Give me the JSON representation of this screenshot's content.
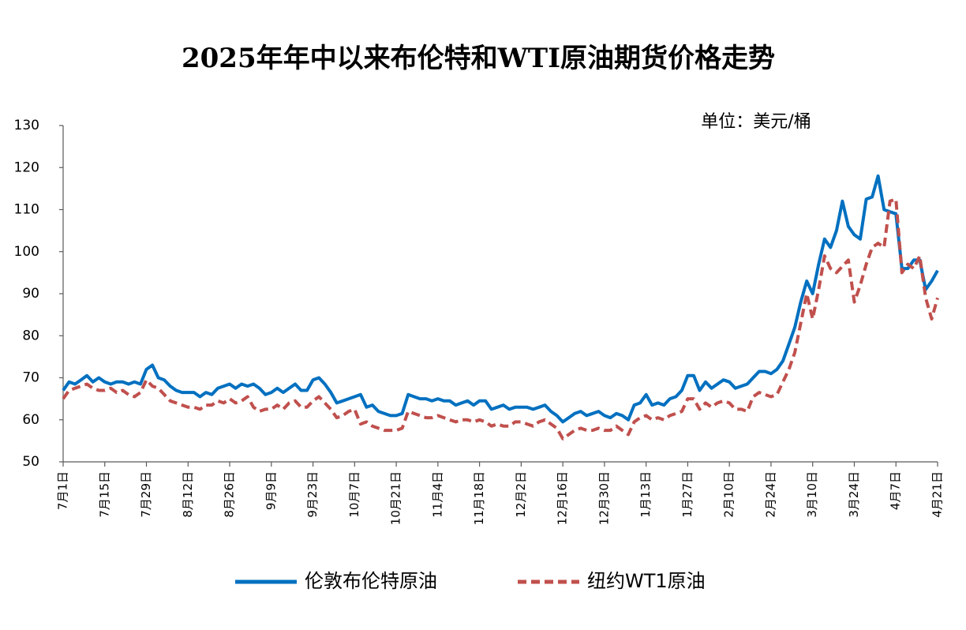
{
  "chart_data": {
    "type": "line",
    "title": "2025年年中以来布伦特和WTI原油期货价格走势",
    "annotation": "单位：美元/桶",
    "categories": [
      "7月1日",
      null,
      null,
      null,
      null,
      null,
      null,
      "7月15日",
      null,
      null,
      null,
      null,
      null,
      null,
      "7月29日",
      null,
      null,
      null,
      null,
      null,
      null,
      "8月12日",
      null,
      null,
      null,
      null,
      null,
      null,
      "8月26日",
      null,
      null,
      null,
      null,
      null,
      null,
      "9月9日",
      null,
      null,
      null,
      null,
      null,
      null,
      "9月23日",
      null,
      null,
      null,
      null,
      null,
      null,
      "10月7日",
      null,
      null,
      null,
      null,
      null,
      null,
      "10月21日",
      null,
      null,
      null,
      null,
      null,
      null,
      "11月4日",
      null,
      null,
      null,
      null,
      null,
      null,
      "11月18日",
      null,
      null,
      null,
      null,
      null,
      null,
      "12月2日",
      null,
      null,
      null,
      null,
      null,
      null,
      "12月16日",
      null,
      null,
      null,
      null,
      null,
      null,
      "12月30日",
      null,
      null,
      null,
      null,
      null,
      null,
      "1月13日",
      null,
      null,
      null,
      null,
      null,
      null,
      "1月27日",
      null,
      null,
      null,
      null,
      null,
      null,
      "2月10日",
      null,
      null,
      null,
      null,
      null,
      null,
      "2月24日",
      null,
      null,
      null,
      null,
      null,
      null,
      "3月10日",
      null,
      null,
      null,
      null,
      null,
      null,
      "3月24日",
      null,
      null,
      null,
      null,
      null,
      null,
      "4月7日",
      null,
      null,
      null,
      null,
      null,
      null,
      "4月21日"
    ],
    "series": [
      {
        "name": "伦敦布伦特原油",
        "color": "#0070c0",
        "dash": false,
        "values": [
          67,
          69,
          68.5,
          69.5,
          70.5,
          69,
          70,
          69,
          68.5,
          69,
          69,
          68.5,
          69,
          68.5,
          72,
          73,
          70,
          69.5,
          68,
          67,
          66.5,
          66.5,
          66.5,
          65.5,
          66.5,
          66,
          67.5,
          68,
          68.5,
          67.5,
          68.5,
          68,
          68.5,
          67.5,
          66,
          66.5,
          67.5,
          66.5,
          67.5,
          68.5,
          67,
          67,
          69.5,
          70,
          68.5,
          66.5,
          64,
          64.5,
          65,
          65.5,
          66,
          63,
          63.5,
          62,
          61.5,
          61,
          61,
          61.5,
          66,
          65.5,
          65,
          65,
          64.5,
          65,
          64.5,
          64.5,
          63.5,
          64,
          64.5,
          63.5,
          64.5,
          64.5,
          62.5,
          63,
          63.5,
          62.5,
          63,
          63,
          63,
          62.5,
          63,
          63.5,
          62,
          61,
          59.5,
          60.5,
          61.5,
          62,
          61,
          61.5,
          62,
          61,
          60.5,
          61.5,
          61,
          60,
          63.5,
          64,
          66,
          63.5,
          64,
          63.5,
          65,
          65.5,
          67,
          70.5,
          70.5,
          67,
          69,
          67.5,
          68.5,
          69.5,
          69,
          67.5,
          68,
          68.5,
          70,
          71.5,
          71.5,
          71,
          72,
          74,
          78,
          82,
          88,
          93,
          90,
          97,
          103,
          101,
          105,
          112,
          106,
          104,
          103,
          112.5,
          113,
          118,
          110,
          109.5,
          109,
          96,
          96,
          98,
          98,
          91,
          93,
          95.5
        ]
      },
      {
        "name": "纽约WT1原油",
        "color": "#c0504d",
        "dash": true,
        "values": [
          65,
          67,
          67.5,
          68,
          68.5,
          67.5,
          67,
          67,
          67.5,
          66.5,
          67,
          66,
          65.5,
          66.5,
          69.5,
          68,
          67.5,
          66,
          64.5,
          64,
          63.5,
          63,
          63,
          62.5,
          63.5,
          63.5,
          64.5,
          64,
          65,
          64,
          64.5,
          65.5,
          63,
          62,
          62.5,
          62.5,
          63.5,
          62.5,
          64,
          64.5,
          63,
          63,
          64.5,
          65.5,
          64,
          62.5,
          60.5,
          61,
          62,
          62.5,
          59,
          59.5,
          58.5,
          58,
          57.5,
          57.5,
          57.5,
          58,
          62,
          61.5,
          61,
          60.5,
          60.5,
          61,
          60.5,
          60,
          59.5,
          60,
          60,
          59.5,
          60,
          59.5,
          58.5,
          59,
          58.5,
          58.5,
          59.5,
          59.5,
          59,
          58.5,
          59.5,
          60,
          59,
          58,
          55.5,
          56.5,
          57.5,
          58,
          57.5,
          57.5,
          58,
          57.5,
          57.5,
          58.5,
          57.5,
          56.5,
          59.5,
          60.5,
          61,
          60,
          60.5,
          60,
          61,
          61.5,
          62,
          65,
          65,
          62.5,
          64,
          63,
          64,
          64.5,
          64,
          62.5,
          62.5,
          62,
          65.5,
          66.5,
          66,
          65.5,
          66,
          69,
          72,
          76,
          83,
          90,
          84,
          91,
          99,
          96,
          95,
          96.5,
          98,
          88,
          92,
          97,
          101,
          102,
          101,
          112,
          112.5,
          95,
          97,
          96,
          99,
          89,
          84,
          89
        ]
      }
    ],
    "ylim": [
      50,
      130
    ],
    "yticks": [
      50,
      60,
      70,
      80,
      90,
      100,
      110,
      120,
      130
    ],
    "grid": false
  }
}
